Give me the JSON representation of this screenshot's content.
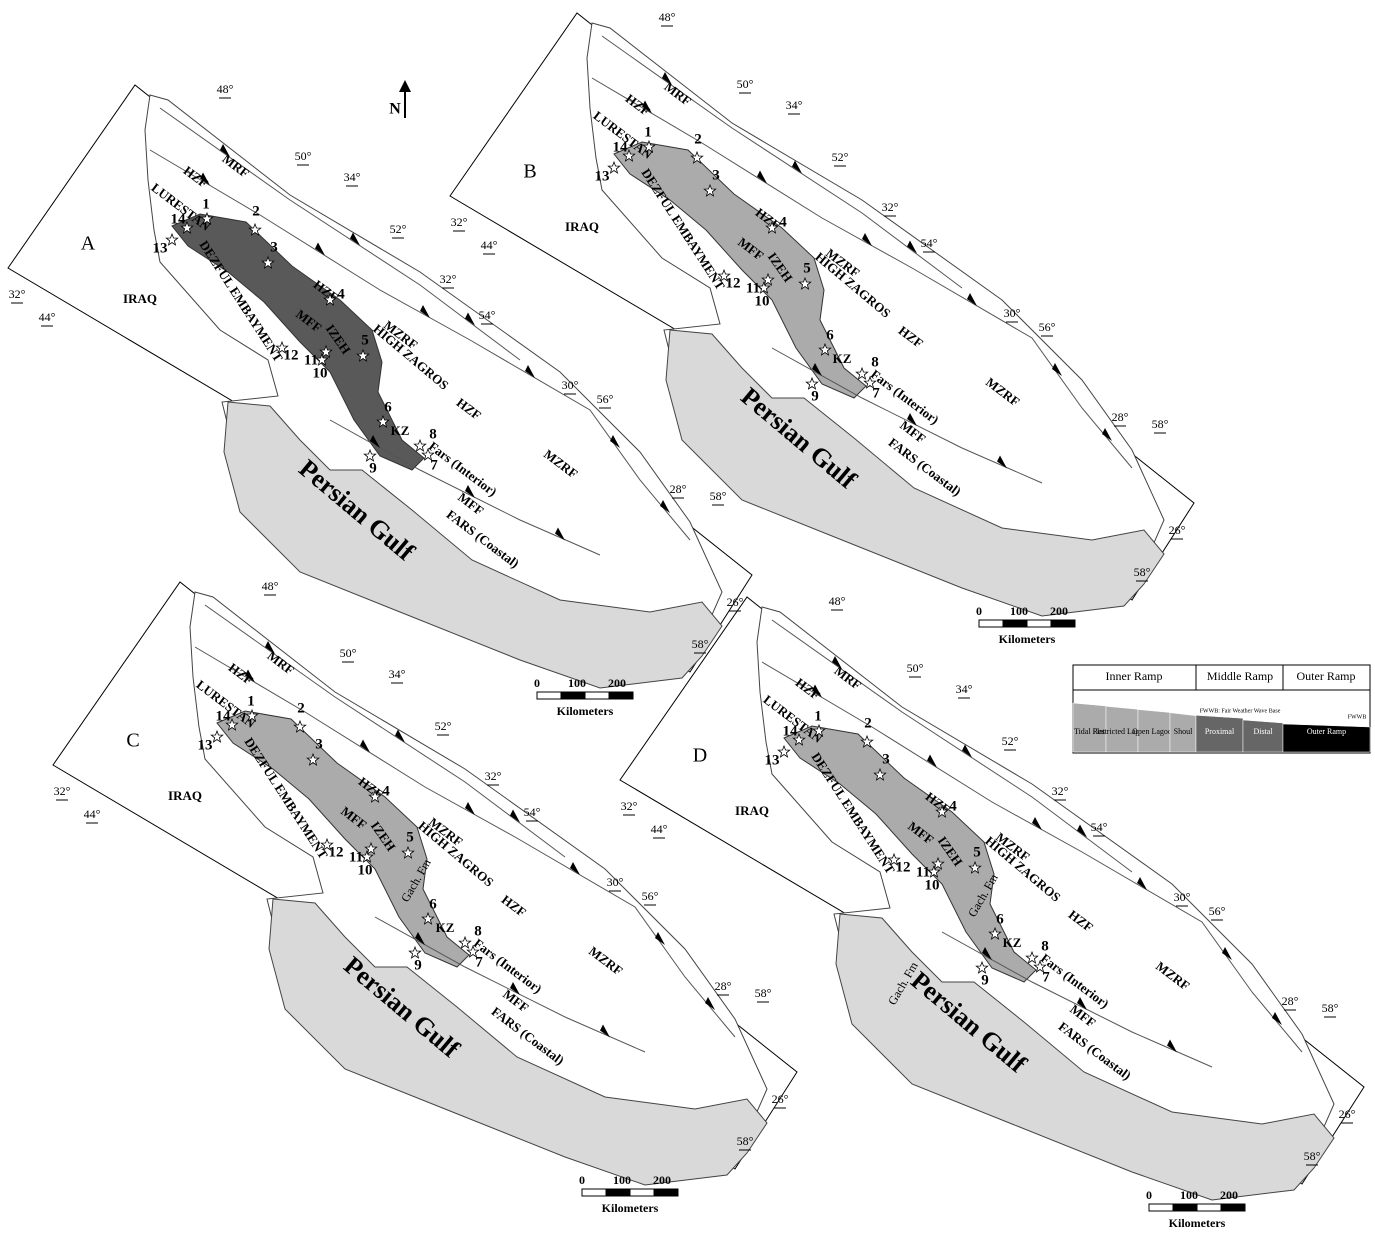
{
  "north": "N",
  "panels": [
    {
      "letter": "A",
      "facies_color": "#595959",
      "extra_labels": []
    },
    {
      "letter": "B",
      "facies_color": "#ababab",
      "extra_labels": []
    },
    {
      "letter": "C",
      "facies_color": "#ababab",
      "extra_labels": [
        "Gach. Fm"
      ]
    },
    {
      "letter": "D",
      "facies_color": "#ababab",
      "extra_labels": [
        "Gach. Fm",
        "Gach. Fm"
      ]
    }
  ],
  "map_labels": [
    "MRF",
    "HZF",
    "LURESTAN",
    "HZF",
    "MFF",
    "IZEH",
    "HIGH ZAGROS",
    "MZRF",
    "HZF",
    "MZRF",
    "KZ",
    "Fars (Interior)",
    "MFF",
    "FARS (Coastal)",
    "DEZFUL EMBAYMENT",
    "IRAQ",
    "Persian Gulf"
  ],
  "degree_labels": [
    "48°",
    "50°",
    "34°",
    "52°",
    "32°",
    "54°",
    "30°",
    "56°",
    "28°",
    "58°",
    "32°",
    "44°",
    "26°",
    "58°"
  ],
  "wells": [
    "1",
    "2",
    "3",
    "4",
    "5",
    "6",
    "7",
    "8",
    "9",
    "10",
    "11",
    "12",
    "13",
    "14"
  ],
  "scale_bar": {
    "ticks": [
      "0",
      "100",
      "200"
    ],
    "unit": "Kilometers"
  },
  "legend": {
    "headers": [
      "Inner Ramp",
      "Middle Ramp",
      "Outer Ramp"
    ],
    "fwwb_note": "FWWB: Fair Weather Wave Base",
    "fwwb": "FWWB",
    "swb_note": "SWB: Storm Wave Base",
    "swb": "SWB",
    "facies": [
      "Tidal Flat",
      "Restricted Lagoon",
      "Open Lagoon",
      "Shoul",
      "Proximal",
      "Distal",
      "Outer Ramp"
    ]
  }
}
